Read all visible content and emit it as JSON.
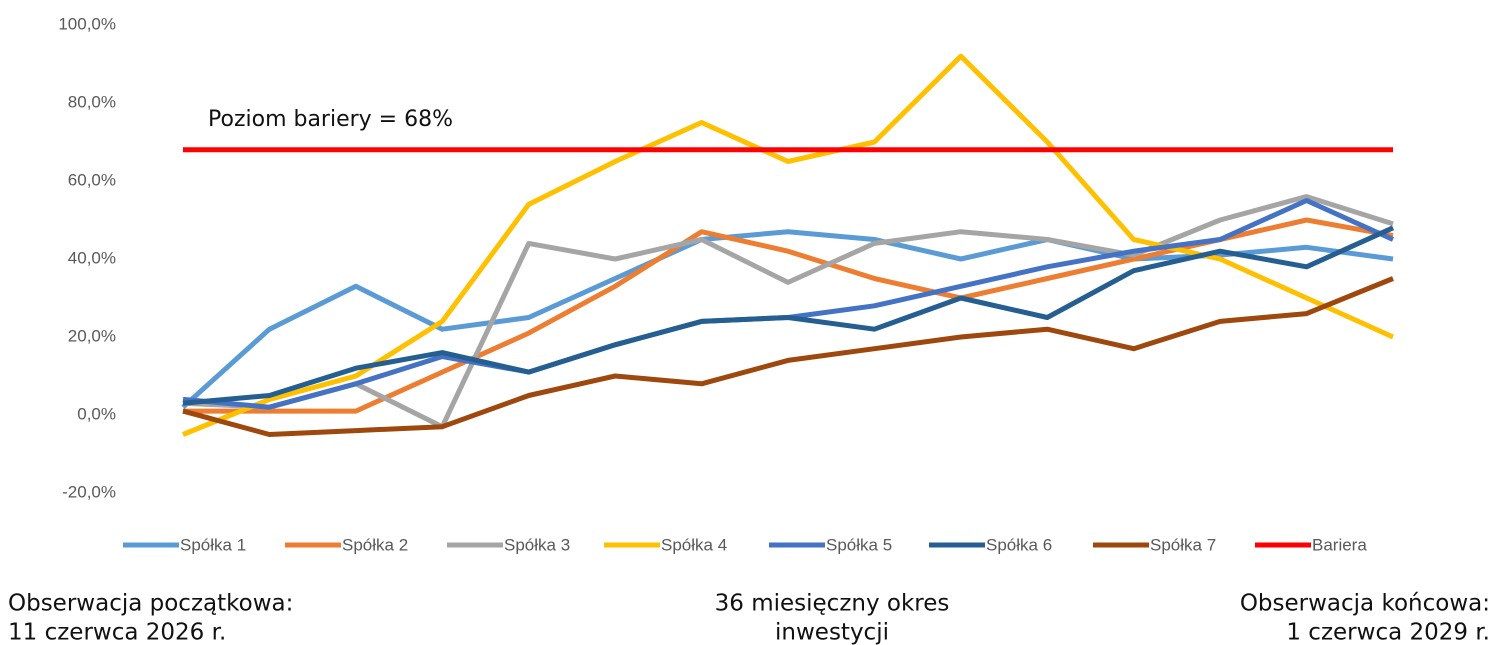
{
  "chart_data": {
    "type": "line",
    "categories": [
      null,
      null,
      null,
      null,
      null,
      null,
      null,
      null,
      null,
      null,
      null,
      null,
      null,
      null,
      null
    ],
    "series": [
      {
        "name": "Spółka 1",
        "color": "#5b9bd5",
        "values": [
          2,
          22,
          33,
          22,
          25,
          35,
          45,
          47,
          45,
          40,
          45,
          40,
          41,
          43,
          40
        ]
      },
      {
        "name": "Spółka 2",
        "color": "#ed7d31",
        "values": [
          1,
          1,
          1,
          11,
          21,
          33,
          47,
          42,
          35,
          30,
          35,
          40,
          45,
          50,
          46
        ]
      },
      {
        "name": "Spółka 3",
        "color": "#a5a5a5",
        "values": [
          3,
          2,
          8,
          -3,
          44,
          40,
          45,
          34,
          44,
          47,
          45,
          41,
          50,
          56,
          49
        ]
      },
      {
        "name": "Spółka 4",
        "color": "#ffc000",
        "values": [
          -5,
          4,
          10,
          24,
          54,
          65,
          75,
          65,
          70,
          92,
          70,
          45,
          40,
          30,
          20
        ]
      },
      {
        "name": "Spółka 5",
        "color": "#4472c4",
        "values": [
          4,
          2,
          8,
          15,
          11,
          18,
          24,
          25,
          28,
          33,
          38,
          42,
          45,
          55,
          45
        ]
      },
      {
        "name": "Spółka 6",
        "color": "#255e91",
        "values": [
          3,
          5,
          12,
          16,
          11,
          18,
          24,
          25,
          22,
          30,
          25,
          37,
          42,
          38,
          48
        ]
      },
      {
        "name": "Spółka 7",
        "color": "#9e480e",
        "values": [
          1,
          -5,
          -4,
          -3,
          5,
          10,
          8,
          14,
          17,
          20,
          22,
          17,
          24,
          26,
          35
        ]
      },
      {
        "name": "Bariera",
        "color": "#ff0000",
        "values": [
          68,
          68,
          68,
          68,
          68,
          68,
          68,
          68,
          68,
          68,
          68,
          68,
          68,
          68,
          68
        ]
      }
    ],
    "ylim": [
      -20,
      100
    ],
    "yticks": [
      {
        "value": -20,
        "label": "-20,0%"
      },
      {
        "value": 0,
        "label": "0,0%"
      },
      {
        "value": 20,
        "label": "20,0%"
      },
      {
        "value": 40,
        "label": "40,0%"
      },
      {
        "value": 60,
        "label": "60,0%"
      },
      {
        "value": 80,
        "label": "80,0%"
      },
      {
        "value": 100,
        "label": "100,0%"
      }
    ],
    "annotation": "Poziom bariery = 68%",
    "footer": {
      "left": [
        "Obserwacja początkowa:",
        "11 czerwca 2026 r."
      ],
      "center": [
        "36 miesięczny okres",
        "inwestycji"
      ],
      "right": [
        "Obserwacja  końcowa:",
        "1 czerwca 2029 r."
      ]
    }
  }
}
